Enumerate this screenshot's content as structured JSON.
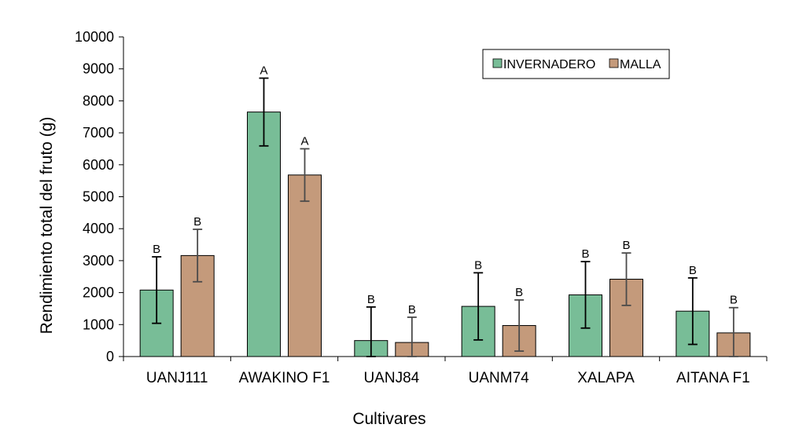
{
  "chart_data": {
    "type": "bar",
    "title": "",
    "xlabel": "Cultivares",
    "ylabel": "Rendimiento total del fruto (g)",
    "ylim": [
      0,
      10000
    ],
    "ytick_step": 1000,
    "yticks": [
      "0",
      "1000",
      "2000",
      "3000",
      "4000",
      "5000",
      "6000",
      "7000",
      "8000",
      "9000",
      "10000"
    ],
    "grid": false,
    "legend_position": "top-right",
    "categories": [
      "UANJ111",
      "AWAKINO F1",
      "UANJ84",
      "UANM74",
      "XALAPA",
      "AITANA F1"
    ],
    "series": [
      {
        "name": "INVERNADERO",
        "color": "#78bd97",
        "values": [
          2080,
          7650,
          500,
          1570,
          1930,
          1420
        ],
        "errors": [
          1040,
          1060,
          1050,
          1050,
          1040,
          1040
        ],
        "labels": [
          "B",
          "A",
          "B",
          "B",
          "B",
          "B"
        ]
      },
      {
        "name": "MALLA",
        "color": "#c49a7b",
        "values": [
          3160,
          5680,
          440,
          970,
          2420,
          740
        ],
        "errors": [
          820,
          820,
          790,
          800,
          820,
          790
        ],
        "labels": [
          "B",
          "A",
          "B",
          "B",
          "B",
          "B"
        ]
      }
    ]
  }
}
